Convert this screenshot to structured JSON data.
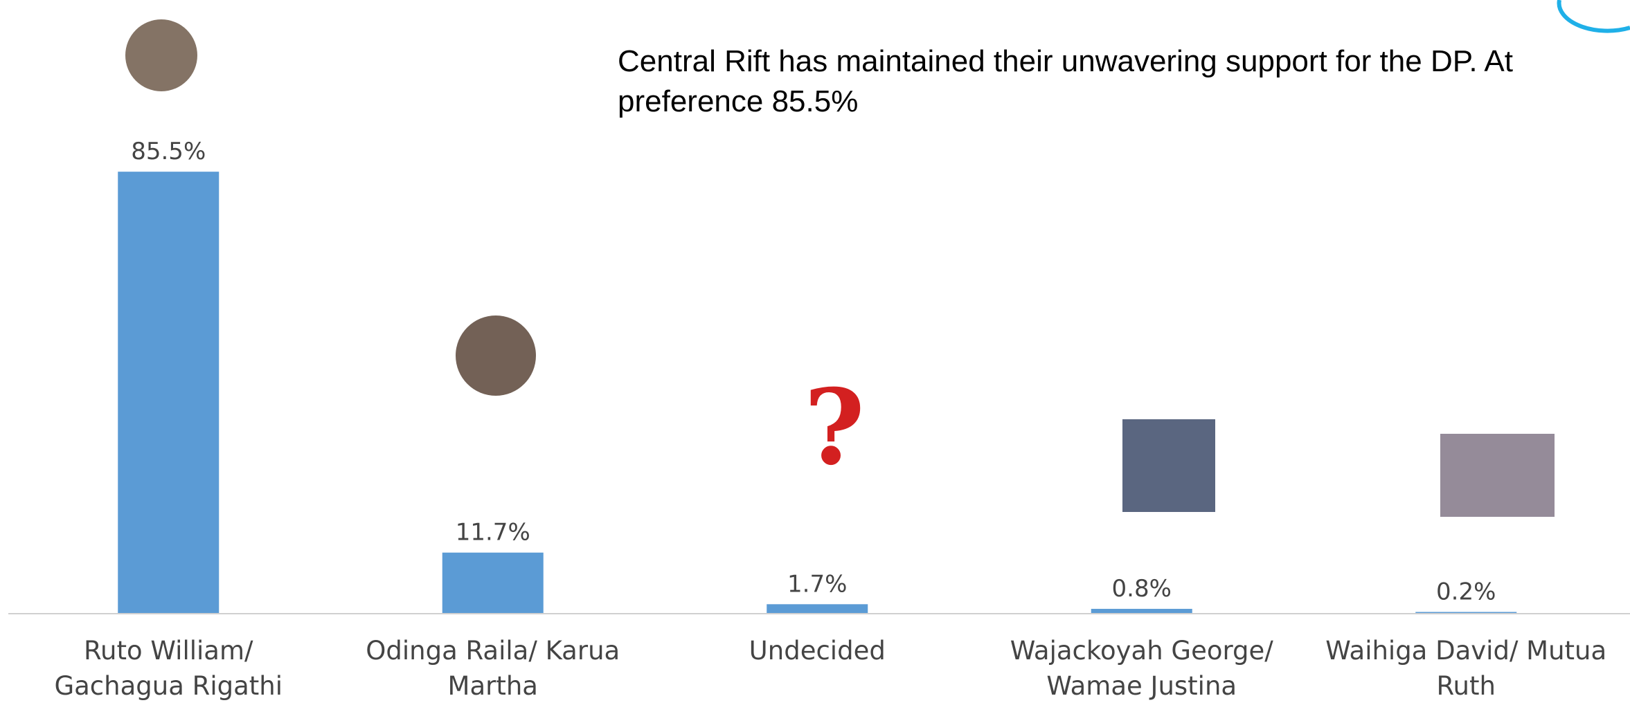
{
  "chart_data": {
    "type": "bar",
    "title": "Central Rift has maintained their unwavering support for the DP. At preference 85.5%",
    "categories": [
      "Ruto William/ Gachagua Rigathi",
      "Odinga Raila/ Karua Martha",
      "Undecided",
      "Wajackoyah George/ Wamae Justina",
      "Waihiga David/ Mutua Ruth"
    ],
    "values": [
      85.5,
      11.7,
      1.7,
      0.8,
      0.2
    ],
    "value_labels": [
      "85.5%",
      "11.7%",
      "1.7%",
      "0.8%",
      "0.2%"
    ],
    "color": "#5b9bd5",
    "ylim": [
      0,
      100
    ]
  }
}
